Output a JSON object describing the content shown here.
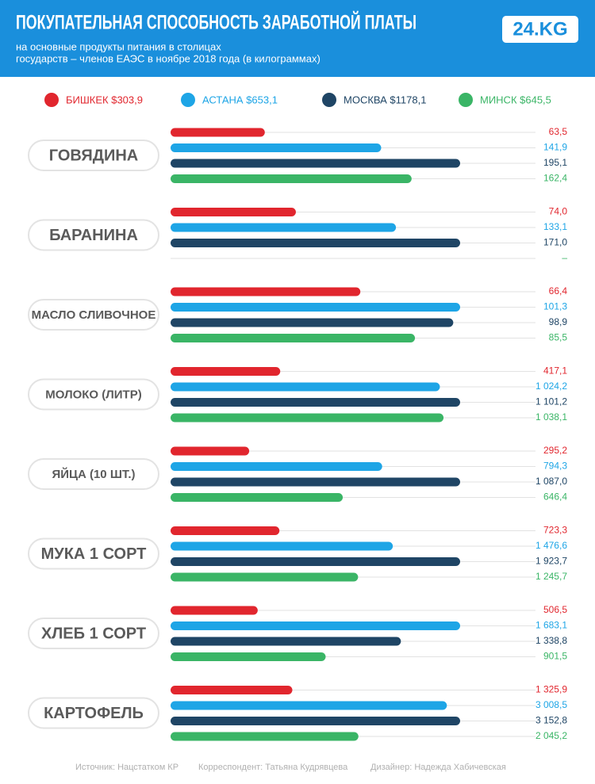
{
  "chart_data": {
    "type": "bar",
    "title": "ПОКУПАТЕЛЬНАЯ СПОСОБНОСТЬ ЗАРАБОТНОЙ ПЛАТЫ",
    "subtitle": [
      "на основные продукты питания в столицах",
      "государств – членов ЕАЭС в ноябре 2018 года (в килограммах)"
    ],
    "logo": "24.KG",
    "categories": [
      "ГОВЯДИНА",
      "БАРАНИНА",
      "МАСЛО СЛИВОЧНОЕ",
      "МОЛОКО (ЛИТР)",
      "ЯЙЦА (10 ШТ.)",
      "МУКА 1 СОРТ",
      "ХЛЕБ 1 СОРТ",
      "КАРТОФЕЛЬ"
    ],
    "series": [
      {
        "name": "БИШКЕК $303,9",
        "color": "#e1262e",
        "values": [
          63.5,
          74.0,
          66.4,
          417.1,
          295.2,
          723.3,
          506.5,
          1325.9
        ],
        "value_labels": [
          "63,5",
          "74,0",
          "66,4",
          "417,1",
          "295,2",
          "723,3",
          "506,5",
          "1 325,9"
        ]
      },
      {
        "name": "АСТАНА $653,1",
        "color": "#1ea5e6",
        "values": [
          141.9,
          133.1,
          101.3,
          1024.2,
          794.3,
          1476.6,
          1683.1,
          3008.5
        ],
        "value_labels": [
          "141,9",
          "133,1",
          "101,3",
          "1 024,2",
          "794,3",
          "1 476,6",
          "1 683,1",
          "3 008,5"
        ]
      },
      {
        "name": "МОСКВА $1178,1",
        "color": "#1f4565",
        "values": [
          195.1,
          171.0,
          98.9,
          1101.2,
          1087.0,
          1923.7,
          1338.8,
          3152.8
        ],
        "value_labels": [
          "195,1",
          "171,0",
          "98,9",
          "1 101,2",
          "1 087,0",
          "1 923,7",
          "1 338,8",
          "3 152,8"
        ]
      },
      {
        "name": "МИНСК $645,5",
        "color": "#3ab566",
        "values": [
          162.4,
          null,
          85.5,
          1038.1,
          646.4,
          1245.7,
          901.5,
          2045.2
        ],
        "value_labels": [
          "162,4",
          "–",
          "85,5",
          "1 038,1",
          "646,4",
          "1 245,7",
          "901,5",
          "2 045,2"
        ]
      }
    ],
    "footer": [
      "Источник: Нацстатком КР",
      "Корреспондент: Татьяна Кудрявцева",
      "Дизайнер: Надежда Хабичевская"
    ]
  }
}
